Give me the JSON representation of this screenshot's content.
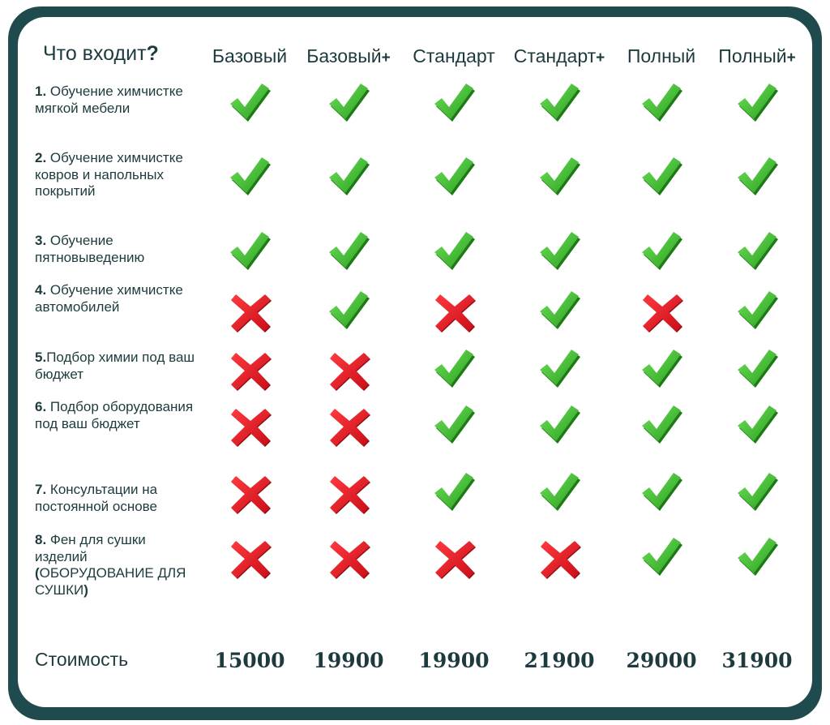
{
  "header": {
    "question_text": "Что входит",
    "question_mark": "?"
  },
  "plans": [
    {
      "name": "Базовый",
      "plus": ""
    },
    {
      "name": "Базовый",
      "plus": "+"
    },
    {
      "name": "Стандарт",
      "plus": ""
    },
    {
      "name": "Стандарт",
      "plus": "+"
    },
    {
      "name": "Полный",
      "plus": ""
    },
    {
      "name": "Полный",
      "plus": "+"
    }
  ],
  "features": [
    {
      "number": "1.",
      "text": "Обучение химчистке мягкой мебели",
      "included": [
        true,
        true,
        true,
        true,
        true,
        true
      ]
    },
    {
      "number": "2.",
      "text": "Обучение химчистке ковров и напольных покрытий",
      "included": [
        true,
        true,
        true,
        true,
        true,
        true
      ]
    },
    {
      "number": "3.",
      "text": "Обучение пятновыведению",
      "included": [
        true,
        true,
        true,
        true,
        true,
        true
      ]
    },
    {
      "number": "4.",
      "text": "Обучение химчистке автомобилей",
      "included": [
        false,
        true,
        false,
        true,
        false,
        true
      ]
    },
    {
      "number": "5.",
      "text": "Подбор химии под ваш бюджет",
      "included": [
        false,
        false,
        true,
        true,
        true,
        true
      ]
    },
    {
      "number": "6.",
      "text": "Подбор оборудования под ваш бюджет",
      "included": [
        false,
        false,
        true,
        true,
        true,
        true
      ]
    },
    {
      "number": "7.",
      "text": "Консультации на постоянной основе",
      "included": [
        false,
        false,
        true,
        true,
        true,
        true
      ]
    },
    {
      "number": "8.",
      "text": "Фен для сушки изделий",
      "bold_text": "(",
      "text_after": "ОБОРУДОВАНИЕ ДЛЯ СУШКИ",
      "bold_close": ")",
      "included": [
        false,
        false,
        false,
        false,
        true,
        true
      ]
    }
  ],
  "cost": {
    "label": "Стоимость",
    "prices": [
      "15000",
      "19900",
      "19900",
      "21900",
      "29000",
      "31900"
    ]
  },
  "colors": {
    "frame": "#1f4b4f",
    "text": "#1d3b3e",
    "check": "#3cbf2e",
    "cross": "#e3141f"
  },
  "icons": {
    "included": "check-icon",
    "excluded": "cross-icon"
  }
}
